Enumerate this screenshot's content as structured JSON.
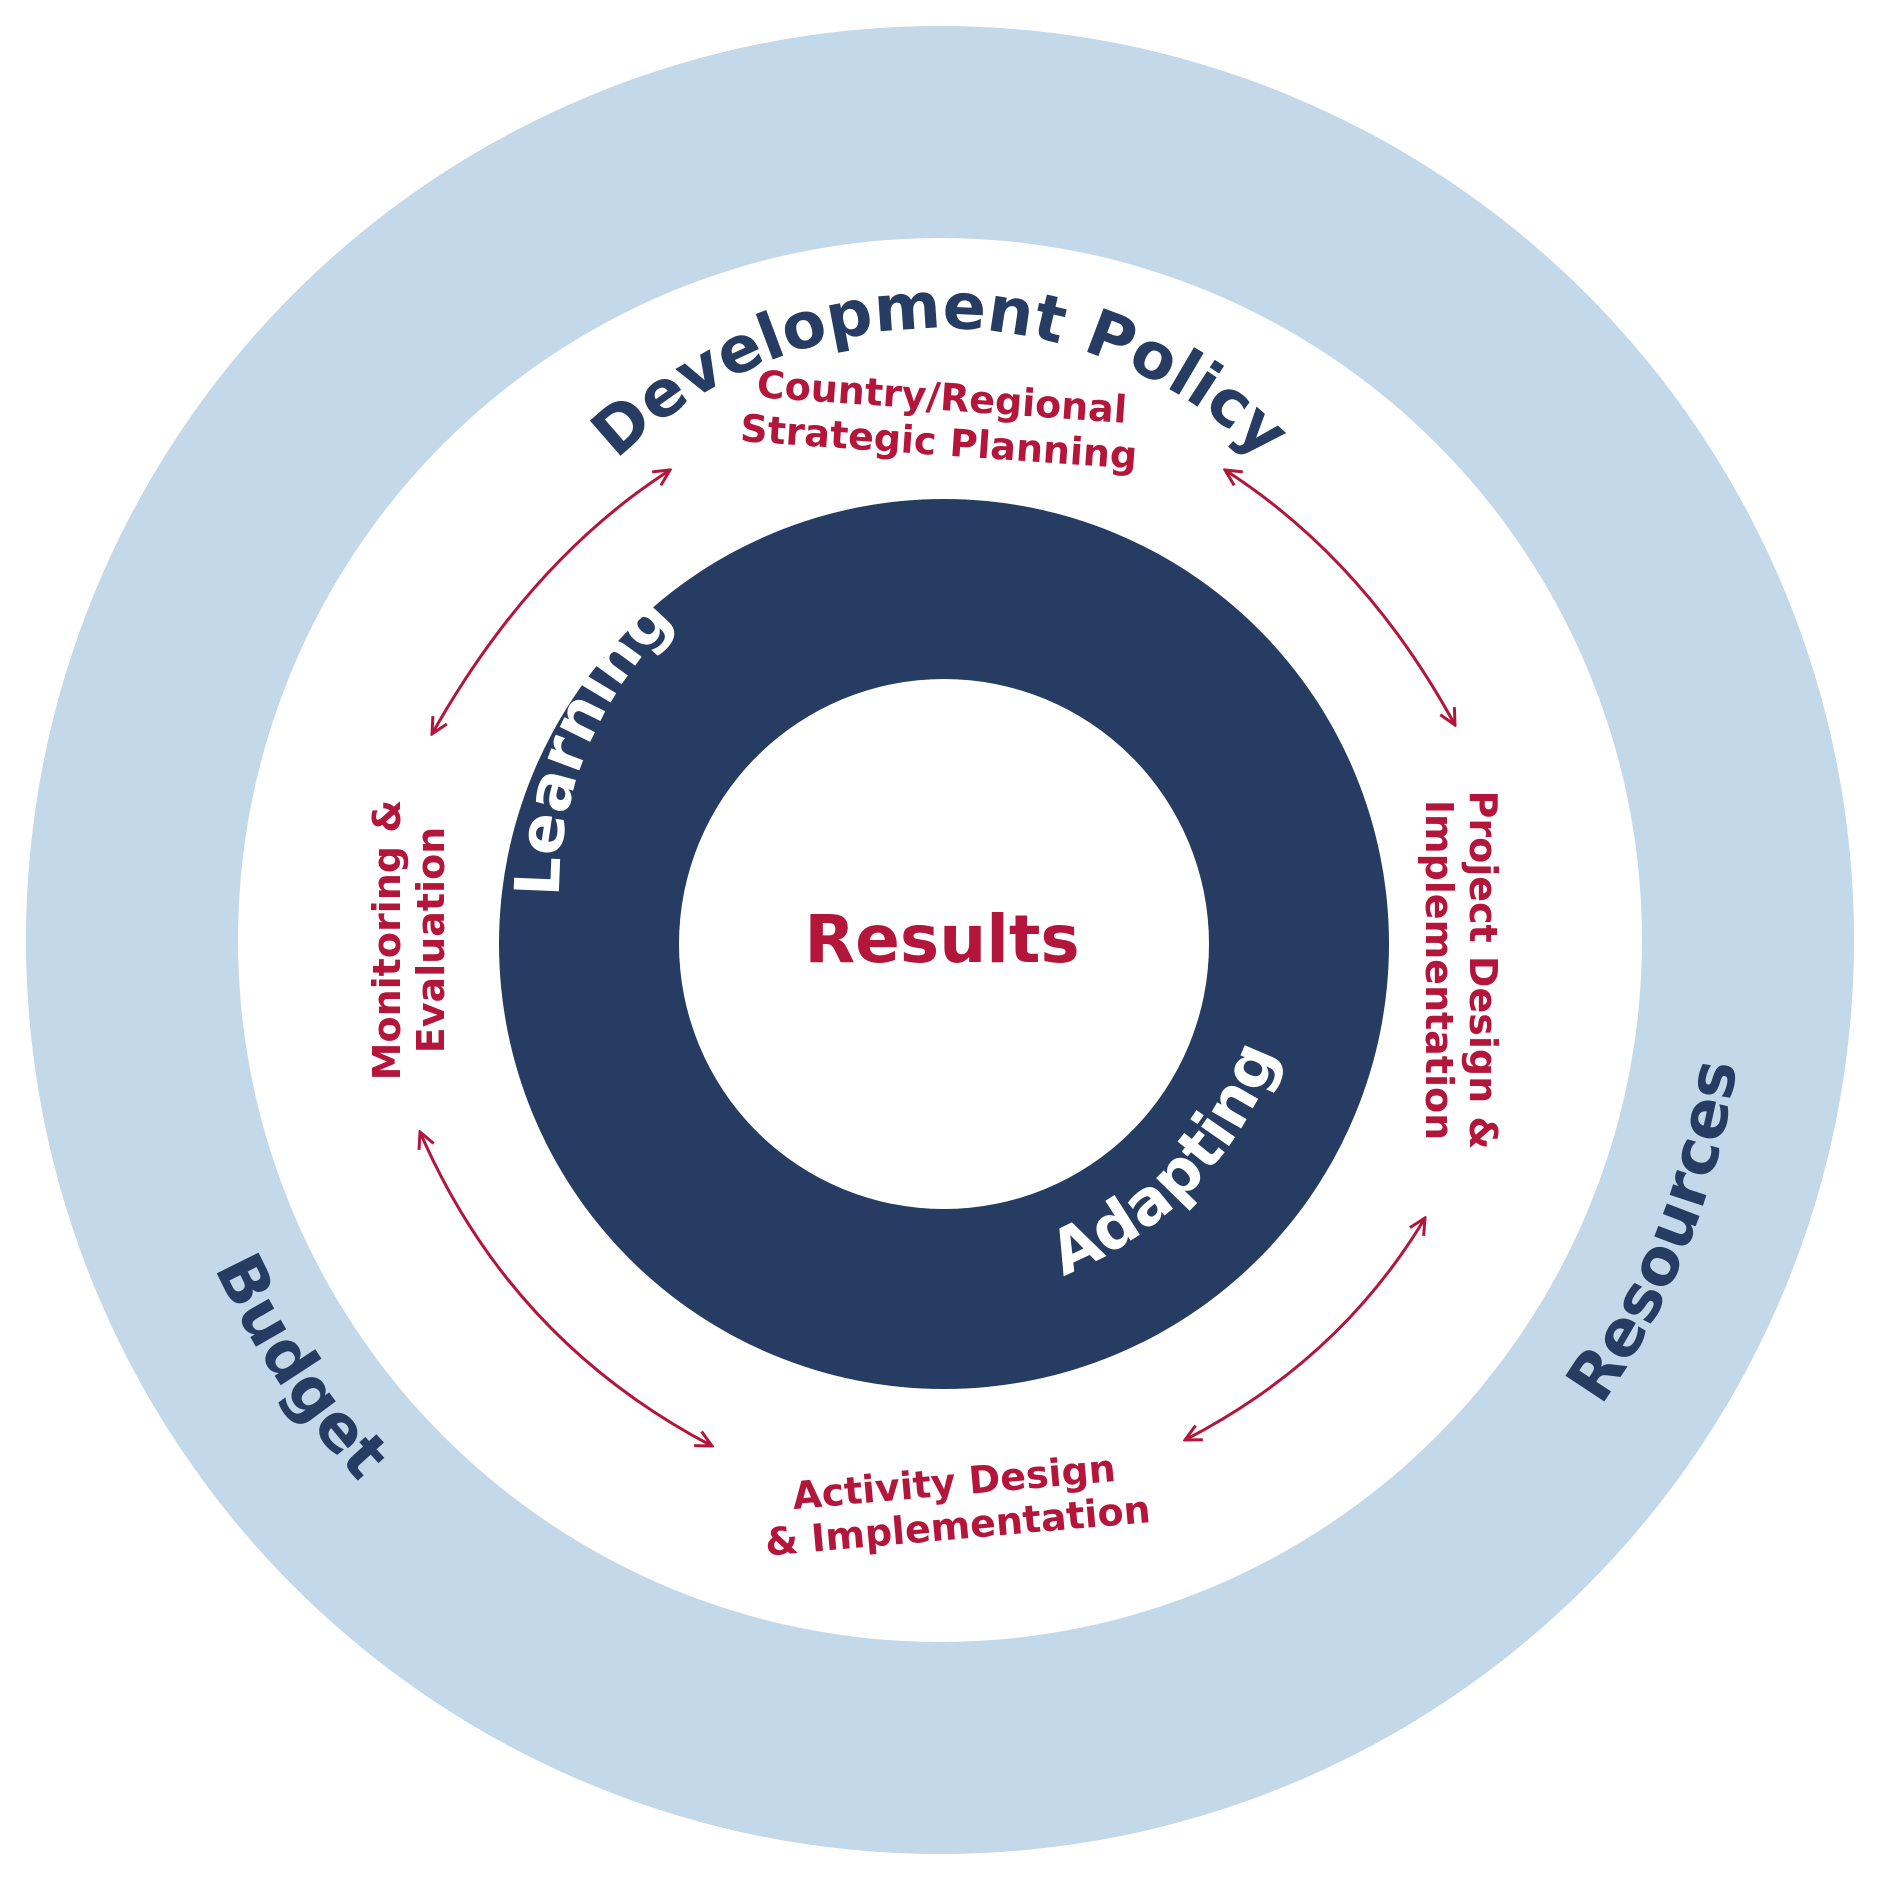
{
  "colors": {
    "outer_ring": "#c3d8e8",
    "navy": "#263c62",
    "red": "#b3163a",
    "white": "#ffffff"
  },
  "outer_ring": {
    "top": "Development Policy",
    "bottom_left": "Budget",
    "bottom_right": "Resources"
  },
  "cycle": {
    "top": [
      "Country/Regional",
      "Strategic Planning"
    ],
    "right": [
      "Project Design &",
      "Implementation"
    ],
    "bottom": [
      "Activity Design",
      "& Implementation"
    ],
    "left": [
      "Monitoring &",
      "Evaluation"
    ]
  },
  "inner_ring": {
    "upper_left": "Learning",
    "lower_right": "Adapting"
  },
  "center": "Results"
}
